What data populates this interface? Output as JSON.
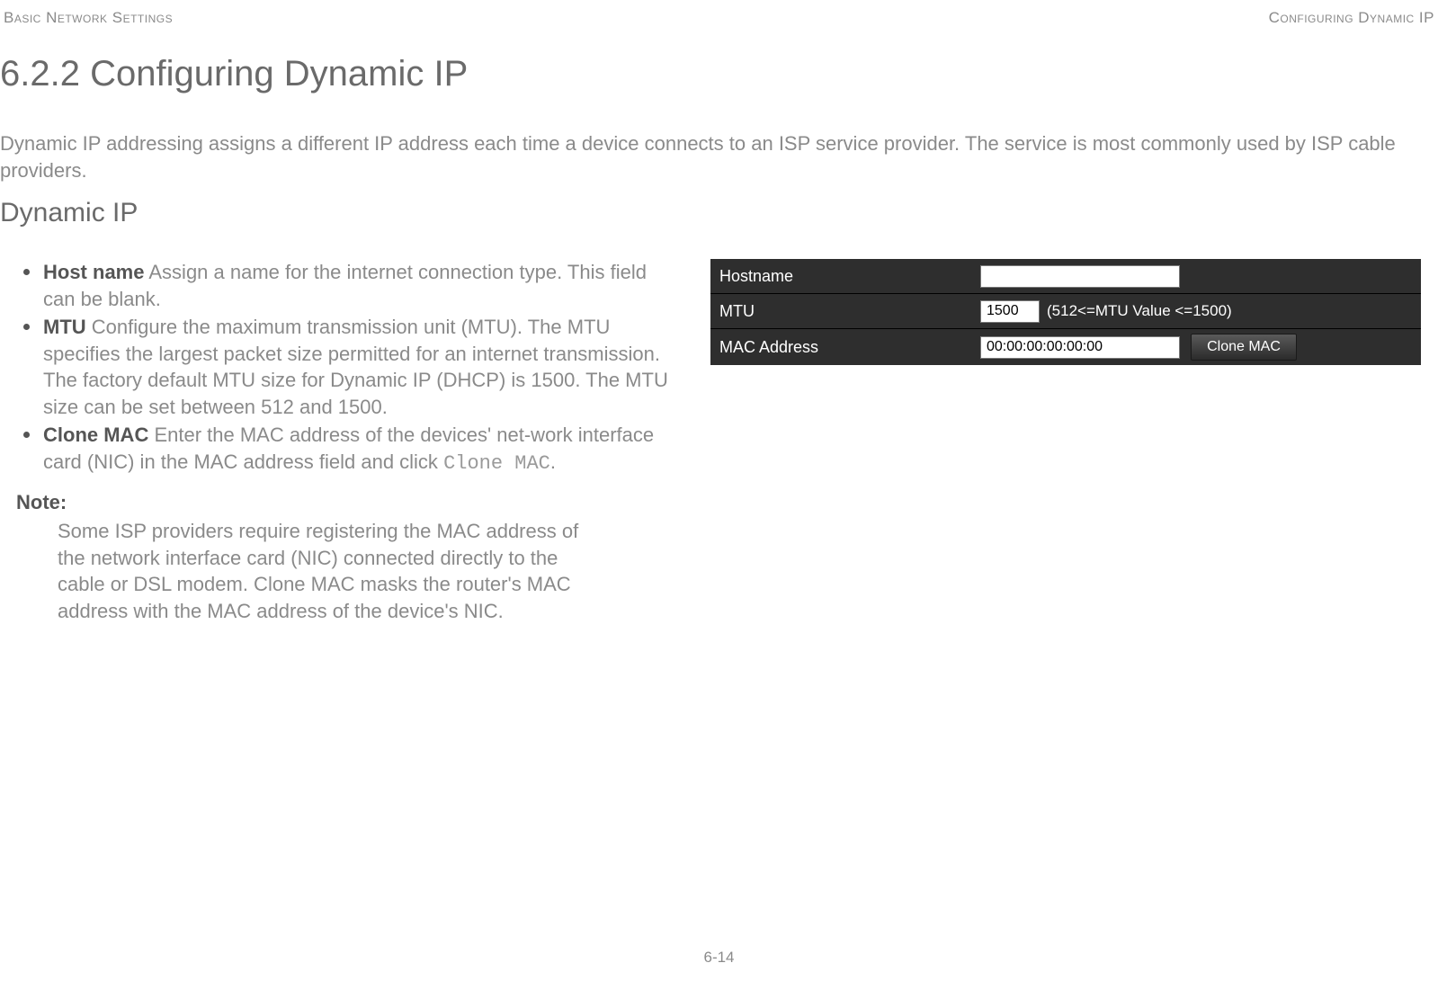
{
  "header": {
    "left": "Basic Network Settings",
    "right": "Configuring Dynamic IP"
  },
  "heading": "6.2.2 Configuring Dynamic IP",
  "intro": "Dynamic IP addressing assigns a different IP address each time a device connects to an ISP service provider. The service is most commonly used by ISP cable providers.",
  "sub_heading": "Dynamic IP",
  "bullets": [
    {
      "term": "Host name",
      "desc": "  Assign a name for the internet connection type. This field can be blank."
    },
    {
      "term": "MTU",
      "desc": "  Configure the maximum transmission unit (MTU). The MTU specifies the largest packet size permitted for an internet transmission. The factory default MTU size for Dynamic IP (DHCP) is 1500. The MTU size can be set between 512 and 1500."
    },
    {
      "term": "Clone MAC",
      "desc_pre": "  Enter the MAC address of the devices' net-work interface card (NIC) in the MAC address field and click ",
      "code": "Clone MAC",
      "desc_post": "."
    }
  ],
  "note": {
    "label": "Note:",
    "body": "Some ISP providers require registering the MAC address of the network interface card (NIC) connected directly to the cable or DSL modem. Clone MAC masks the router's MAC address with the MAC address of the device's NIC."
  },
  "panel": {
    "hostname_label": "Hostname",
    "hostname_value": "",
    "mtu_label": "MTU",
    "mtu_value": "1500",
    "mtu_hint": "(512<=MTU Value <=1500)",
    "mac_label": "MAC Address",
    "mac_value": "00:00:00:00:00:00",
    "clone_button": "Clone MAC"
  },
  "page_number": "6-14"
}
